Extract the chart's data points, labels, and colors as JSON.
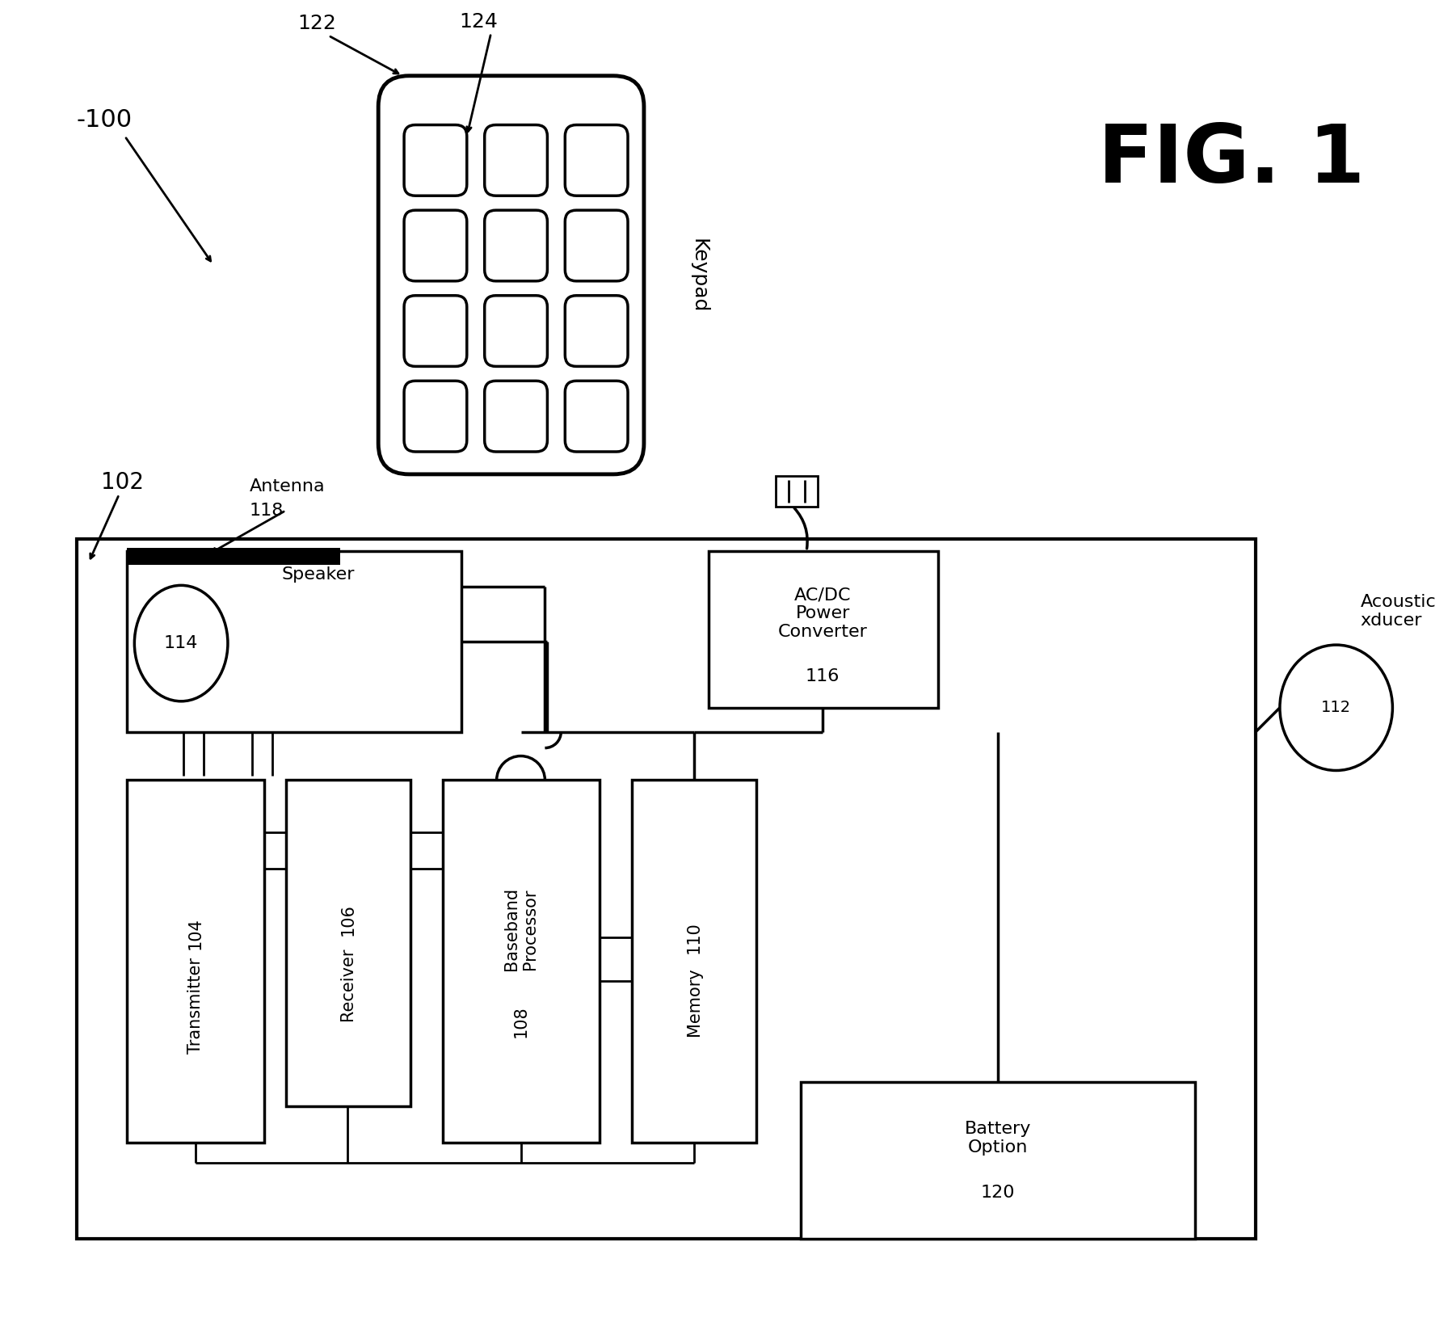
{
  "bg_color": "#ffffff",
  "fig_label": "FIG. 1",
  "system_label": "100",
  "device_label": "102",
  "keypad_label": "122",
  "keypad_key_label": "124",
  "keypad_text": "Keypad",
  "antenna_label": "118",
  "antenna_text": "Antenna",
  "speaker_label": "114",
  "speaker_text": "Speaker",
  "transmitter_label": "104",
  "transmitter_text": "Transmitter",
  "receiver_label": "106",
  "receiver_text": "Receiver",
  "baseband_label": "108",
  "baseband_text": "Baseband\nProcessor",
  "memory_label": "110",
  "memory_text": "Memory",
  "acdc_label": "116",
  "acdc_text": "AC/DC\nPower\nConverter",
  "battery_label": "120",
  "battery_text": "Battery\nOption",
  "acoustic_label": "112",
  "acoustic_text": "Acoustic\nxducer"
}
